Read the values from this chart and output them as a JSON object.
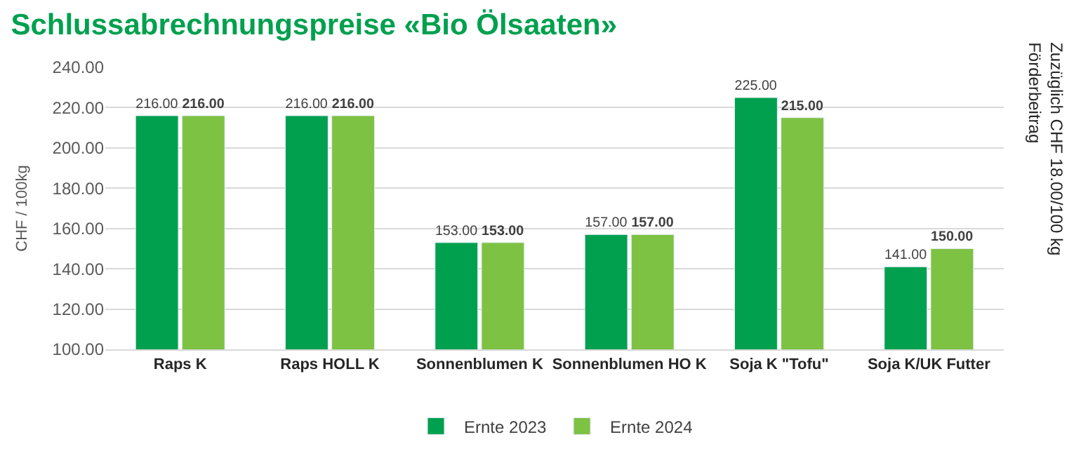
{
  "chart_data": {
    "type": "bar",
    "title": "Schlussabrechnungspreise «Bio Ölsaaten»",
    "ylabel": "CHF / 100kg",
    "categories": [
      "Raps K",
      "Raps HOLL K",
      "Sonnenblumen K",
      "Sonnenblumen HO K",
      "Soja K \"Tofu\"",
      "Soja K/UK Futter"
    ],
    "series": [
      {
        "name": "Ernte 2023",
        "color": "#00a04f",
        "values": [
          216,
          216,
          153,
          157,
          225,
          141
        ],
        "value_labels": [
          "216.00",
          "216.00",
          "153.00",
          "157.00",
          "225.00",
          "141.00"
        ]
      },
      {
        "name": "Ernte 2024",
        "color": "#7dc242",
        "values": [
          216,
          216,
          153,
          157,
          215,
          150
        ],
        "value_labels": [
          "216.00",
          "216.00",
          "153.00",
          "157.00",
          "215.00",
          "150.00"
        ]
      }
    ],
    "ylim": [
      100,
      240
    ],
    "yticks": [
      {
        "value": 100,
        "label": "100.00"
      },
      {
        "value": 120,
        "label": "120.00"
      },
      {
        "value": 140,
        "label": "140.00"
      },
      {
        "value": 160,
        "label": "160.00"
      },
      {
        "value": 180,
        "label": "180.00"
      },
      {
        "value": 200,
        "label": "200.00"
      },
      {
        "value": 220,
        "label": "220.00"
      },
      {
        "value": 240,
        "label": "240.00"
      }
    ],
    "grid": "y",
    "legend": "bottom",
    "annotations": [
      "Zuzüglich CHF 18.00/100 kg\nFörderbeitrag"
    ]
  }
}
